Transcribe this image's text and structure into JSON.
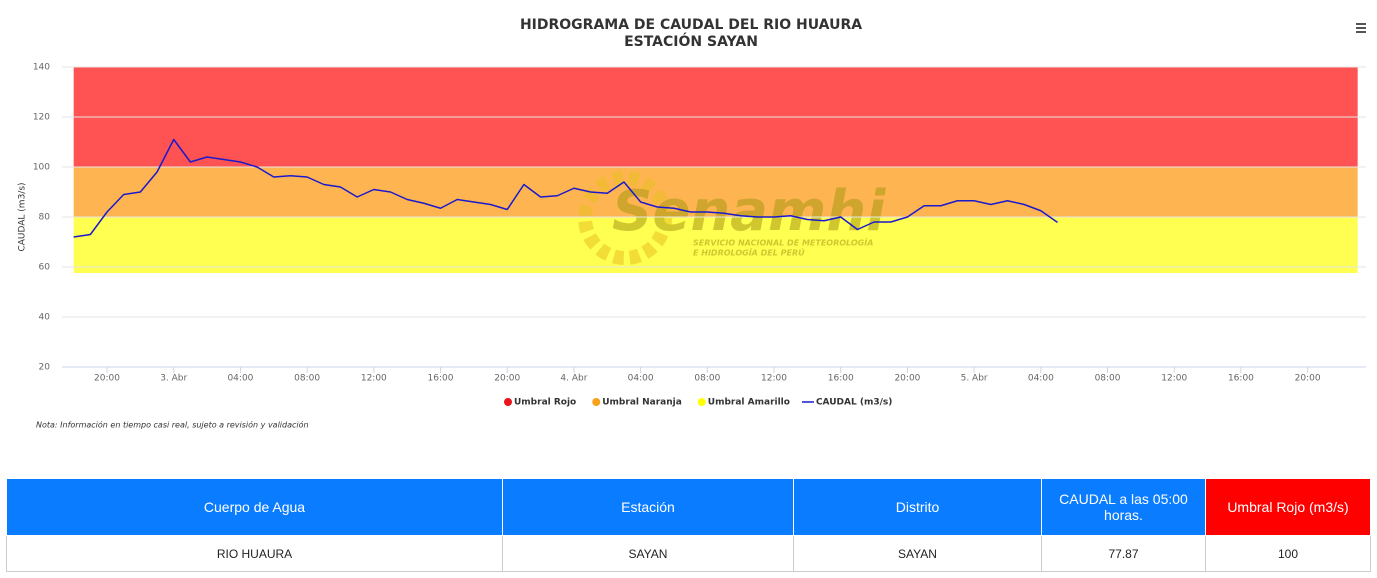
{
  "chart_data": {
    "type": "line",
    "title": "HIDROGRAMA DE CAUDAL DEL RIO HUAURA",
    "subtitle": "ESTACIÓN SAYAN",
    "y_label": "CAUDAL (m3/s)",
    "ylim": [
      20,
      140
    ],
    "yticks": [
      20,
      40,
      60,
      80,
      100,
      120,
      140
    ],
    "xlim": [
      17.3,
      95.5
    ],
    "xticks": [
      {
        "value": 20,
        "label": "20:00"
      },
      {
        "value": 24,
        "label": "3. Abr"
      },
      {
        "value": 28,
        "label": "04:00"
      },
      {
        "value": 32,
        "label": "08:00"
      },
      {
        "value": 36,
        "label": "12:00"
      },
      {
        "value": 40,
        "label": "16:00"
      },
      {
        "value": 44,
        "label": "20:00"
      },
      {
        "value": 48,
        "label": "4. Abr"
      },
      {
        "value": 52,
        "label": "04:00"
      },
      {
        "value": 56,
        "label": "08:00"
      },
      {
        "value": 60,
        "label": "12:00"
      },
      {
        "value": 64,
        "label": "16:00"
      },
      {
        "value": 68,
        "label": "20:00"
      },
      {
        "value": 72,
        "label": "5. Abr"
      },
      {
        "value": 76,
        "label": "04:00"
      },
      {
        "value": 80,
        "label": "08:00"
      },
      {
        "value": 84,
        "label": "12:00"
      },
      {
        "value": 88,
        "label": "16:00"
      },
      {
        "value": 92,
        "label": "20:00"
      }
    ],
    "grid": true,
    "legend": "bottom",
    "bands": [
      {
        "name": "Umbral Rojo",
        "color": "#ff5252",
        "marker_color": "#e8161b",
        "from": 100,
        "to": 140,
        "x": [
          18,
          95
        ]
      },
      {
        "name": "Umbral Naranja",
        "color": "#ffb452",
        "marker_color": "#f7a21b",
        "from": 80,
        "to": 100,
        "x": [
          18,
          95
        ]
      },
      {
        "name": "Umbral Amarillo",
        "color": "#ffff52",
        "marker_color": "#ffff00",
        "from": 57.6,
        "to": 80,
        "x": [
          18,
          95
        ]
      }
    ],
    "series": [
      {
        "name": "CAUDAL (m3/s)",
        "color": "#1a1acc",
        "x": [
          18,
          19,
          20,
          21,
          22,
          23,
          24,
          25,
          26,
          27,
          28,
          29,
          30,
          31,
          32,
          33,
          34,
          35,
          36,
          37,
          38,
          39,
          40,
          41,
          42,
          43,
          44,
          45,
          46,
          47,
          48,
          49,
          50,
          51,
          52,
          53,
          54,
          55,
          56,
          57,
          58,
          59,
          60,
          61,
          62,
          63,
          64,
          65,
          66,
          67,
          68,
          69,
          70,
          71,
          72,
          73,
          74,
          75,
          76,
          77
        ],
        "values": [
          72,
          73,
          82,
          89,
          90,
          98,
          111,
          102,
          104,
          103,
          102,
          100,
          96,
          96.5,
          96,
          93,
          92,
          88,
          91,
          90,
          87,
          85.5,
          83.5,
          87,
          86,
          85,
          83,
          93,
          88,
          88.5,
          91.5,
          90,
          89.5,
          94,
          86,
          84,
          83.5,
          82,
          82,
          81.5,
          80.5,
          80,
          80,
          80.5,
          79,
          78.5,
          80,
          75,
          78,
          78,
          80,
          84.5,
          84.5,
          86.5,
          86.5,
          85,
          86.5,
          85,
          82.5,
          77.87
        ]
      }
    ],
    "watermark": {
      "title": "Senamhi",
      "line1": "SERVICIO NACIONAL DE METEOROLOGÍA",
      "line2": "E HIDROLOGÍA DEL PERÚ"
    },
    "note": "Nota: Información en tiempo casi real, sujeto a revisión y validación"
  },
  "table": {
    "header": [
      "Cuerpo de Agua",
      "Estación",
      "Distrito",
      "CAUDAL a las 05:00 horas.",
      "Umbral Rojo (m3/s)"
    ],
    "rows": [
      [
        "RIO HUAURA",
        "SAYAN",
        "SAYAN",
        "77.87",
        "100"
      ]
    ]
  }
}
